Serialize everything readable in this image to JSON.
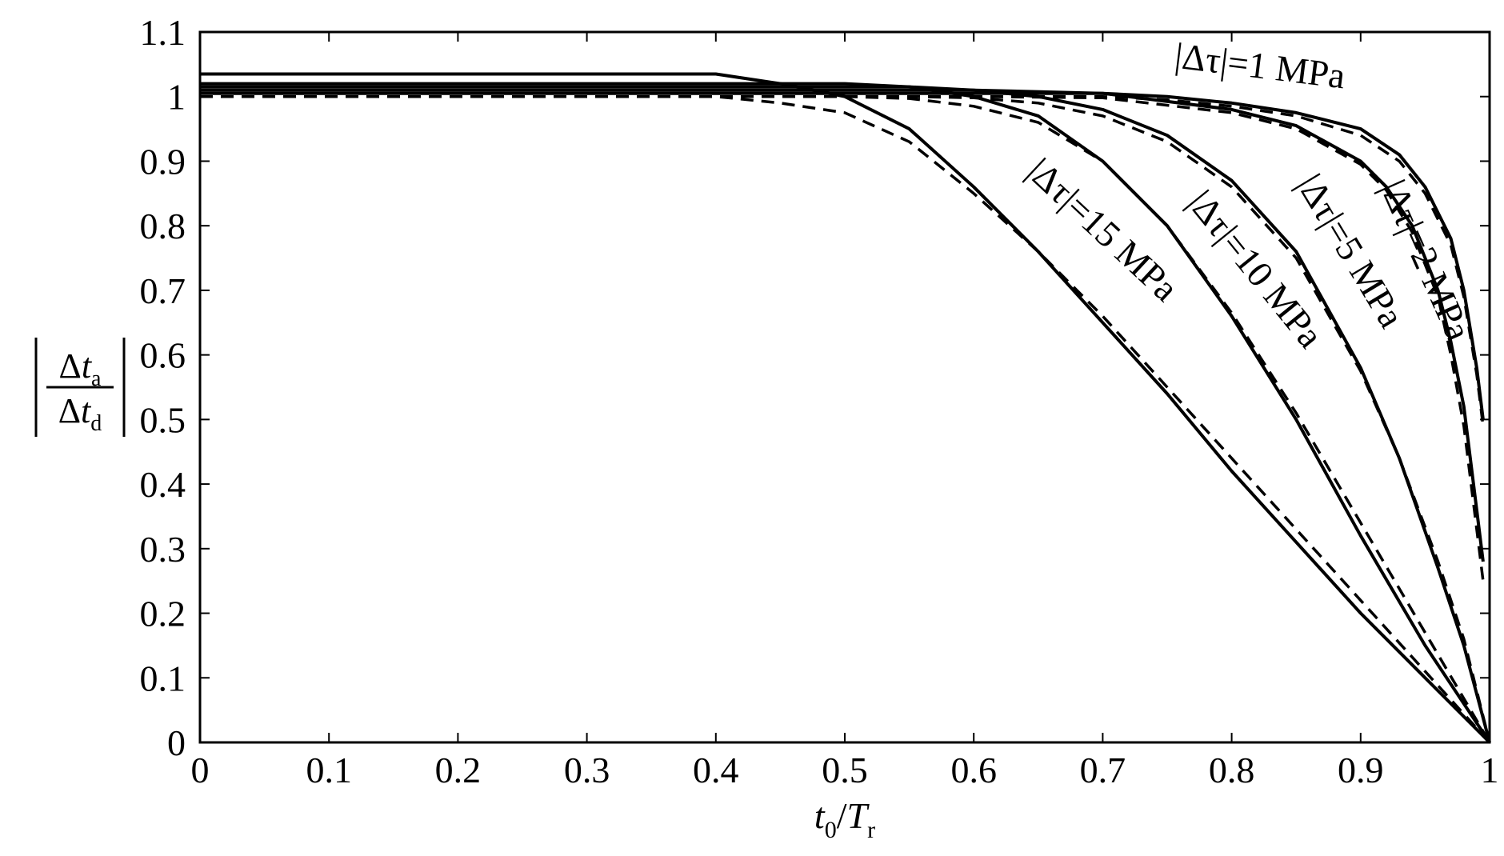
{
  "chart_data": {
    "type": "line",
    "title": "",
    "xlabel": {
      "main": "t",
      "sub0": "0",
      "slash": "/",
      "main2": "T",
      "sub2": "r"
    },
    "ylabel": {
      "num_delta": "Δ",
      "num_var": "t",
      "num_sub": "a",
      "den_delta": "Δ",
      "den_var": "t",
      "den_sub": "d"
    },
    "xlim": [
      0,
      1
    ],
    "ylim": [
      0,
      1.1
    ],
    "x_ticks": [
      "0",
      "0.1",
      "0.2",
      "0.3",
      "0.4",
      "0.5",
      "0.6",
      "0.7",
      "0.8",
      "0.9",
      "1"
    ],
    "y_ticks": [
      "0",
      "0.1",
      "0.2",
      "0.3",
      "0.4",
      "0.5",
      "0.6",
      "0.7",
      "0.8",
      "0.9",
      "1",
      "1.1"
    ],
    "grid": false,
    "legend": "none",
    "series": [
      {
        "label": "|Δτ|=1 MPa",
        "solid": [
          [
            0,
            1.005
          ],
          [
            0.7,
            1.005
          ],
          [
            0.75,
            1.0
          ],
          [
            0.8,
            0.99
          ],
          [
            0.85,
            0.975
          ],
          [
            0.9,
            0.95
          ],
          [
            0.93,
            0.91
          ],
          [
            0.95,
            0.86
          ],
          [
            0.97,
            0.78
          ],
          [
            0.98,
            0.7
          ],
          [
            0.99,
            0.58
          ],
          [
            0.995,
            0.5
          ]
        ],
        "dashed": [
          [
            0,
            1.0
          ],
          [
            0.7,
            1.0
          ],
          [
            0.75,
            0.995
          ],
          [
            0.8,
            0.985
          ],
          [
            0.85,
            0.97
          ],
          [
            0.9,
            0.94
          ],
          [
            0.93,
            0.9
          ],
          [
            0.95,
            0.85
          ],
          [
            0.97,
            0.77
          ],
          [
            0.98,
            0.69
          ],
          [
            0.99,
            0.57
          ],
          [
            0.995,
            0.49
          ]
        ]
      },
      {
        "label": "|Δτ|=2 MPa",
        "solid": [
          [
            0,
            1.01
          ],
          [
            0.6,
            1.01
          ],
          [
            0.7,
            1.005
          ],
          [
            0.8,
            0.98
          ],
          [
            0.85,
            0.955
          ],
          [
            0.9,
            0.9
          ],
          [
            0.92,
            0.86
          ],
          [
            0.94,
            0.8
          ],
          [
            0.96,
            0.7
          ],
          [
            0.97,
            0.62
          ],
          [
            0.98,
            0.52
          ],
          [
            0.99,
            0.36
          ],
          [
            0.995,
            0.28
          ]
        ],
        "dashed": [
          [
            0,
            1.0
          ],
          [
            0.6,
            1.0
          ],
          [
            0.7,
            0.998
          ],
          [
            0.8,
            0.975
          ],
          [
            0.85,
            0.95
          ],
          [
            0.9,
            0.895
          ],
          [
            0.92,
            0.855
          ],
          [
            0.94,
            0.79
          ],
          [
            0.96,
            0.69
          ],
          [
            0.97,
            0.6
          ],
          [
            0.98,
            0.49
          ],
          [
            0.99,
            0.33
          ],
          [
            0.995,
            0.25
          ]
        ]
      },
      {
        "label": "|Δτ|=5 MPa",
        "solid": [
          [
            0,
            1.015
          ],
          [
            0.55,
            1.015
          ],
          [
            0.6,
            1.01
          ],
          [
            0.65,
            1.0
          ],
          [
            0.7,
            0.98
          ],
          [
            0.75,
            0.94
          ],
          [
            0.8,
            0.87
          ],
          [
            0.85,
            0.76
          ],
          [
            0.9,
            0.58
          ],
          [
            0.93,
            0.44
          ],
          [
            0.96,
            0.27
          ],
          [
            0.98,
            0.15
          ],
          [
            1.0,
            0.0
          ]
        ],
        "dashed": [
          [
            0,
            1.0
          ],
          [
            0.55,
            1.0
          ],
          [
            0.6,
            0.998
          ],
          [
            0.65,
            0.99
          ],
          [
            0.7,
            0.97
          ],
          [
            0.75,
            0.93
          ],
          [
            0.8,
            0.86
          ],
          [
            0.85,
            0.75
          ],
          [
            0.9,
            0.575
          ],
          [
            0.93,
            0.44
          ],
          [
            0.96,
            0.28
          ],
          [
            0.98,
            0.16
          ],
          [
            1.0,
            0.0
          ]
        ]
      },
      {
        "label": "|Δτ|=10 MPa",
        "solid": [
          [
            0,
            1.02
          ],
          [
            0.5,
            1.02
          ],
          [
            0.55,
            1.015
          ],
          [
            0.6,
            1.0
          ],
          [
            0.65,
            0.97
          ],
          [
            0.7,
            0.9
          ],
          [
            0.75,
            0.8
          ],
          [
            0.8,
            0.66
          ],
          [
            0.85,
            0.5
          ],
          [
            0.9,
            0.32
          ],
          [
            0.95,
            0.15
          ],
          [
            1.0,
            0.0
          ]
        ],
        "dashed": [
          [
            0,
            1.0
          ],
          [
            0.5,
            1.0
          ],
          [
            0.55,
            0.997
          ],
          [
            0.6,
            0.985
          ],
          [
            0.65,
            0.96
          ],
          [
            0.7,
            0.9
          ],
          [
            0.75,
            0.8
          ],
          [
            0.8,
            0.665
          ],
          [
            0.85,
            0.51
          ],
          [
            0.9,
            0.34
          ],
          [
            0.95,
            0.17
          ],
          [
            1.0,
            0.0
          ]
        ]
      },
      {
        "label": "|Δτ|=15 MPa",
        "solid": [
          [
            0,
            1.035
          ],
          [
            0.4,
            1.035
          ],
          [
            0.45,
            1.02
          ],
          [
            0.5,
            1.0
          ],
          [
            0.55,
            0.95
          ],
          [
            0.6,
            0.86
          ],
          [
            0.65,
            0.76
          ],
          [
            0.7,
            0.65
          ],
          [
            0.75,
            0.54
          ],
          [
            0.8,
            0.42
          ],
          [
            0.85,
            0.31
          ],
          [
            0.9,
            0.2
          ],
          [
            0.95,
            0.1
          ],
          [
            1.0,
            0.0
          ]
        ],
        "dashed": [
          [
            0,
            1.0
          ],
          [
            0.4,
            1.0
          ],
          [
            0.45,
            0.99
          ],
          [
            0.5,
            0.975
          ],
          [
            0.55,
            0.93
          ],
          [
            0.6,
            0.85
          ],
          [
            0.65,
            0.76
          ],
          [
            0.7,
            0.66
          ],
          [
            0.75,
            0.55
          ],
          [
            0.8,
            0.44
          ],
          [
            0.85,
            0.33
          ],
          [
            0.9,
            0.22
          ],
          [
            0.95,
            0.11
          ],
          [
            1.0,
            0.0
          ]
        ]
      }
    ]
  }
}
